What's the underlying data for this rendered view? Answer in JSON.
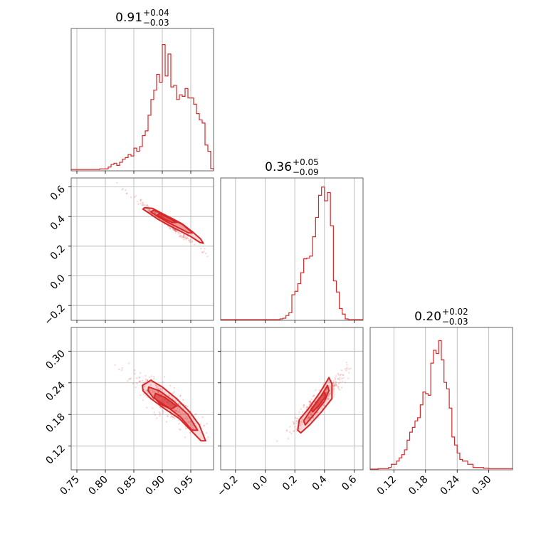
{
  "chart_data": {
    "type": "corner",
    "color": "#d62728",
    "grid": true,
    "parameters": [
      {
        "id": "p0",
        "title": {
          "median": "0.91",
          "plus": "+0.04",
          "minus": "−0.03"
        },
        "range": [
          0.74,
          0.99
        ],
        "ticks": [
          0.75,
          0.8,
          0.85,
          0.9,
          0.95
        ],
        "tick_labels": [
          "0.75",
          "0.80",
          "0.85",
          "0.90",
          "0.95"
        ],
        "hist": {
          "edges": [
            0.74,
            0.745,
            0.75,
            0.755,
            0.76,
            0.765,
            0.77,
            0.775,
            0.78,
            0.785,
            0.79,
            0.795,
            0.8,
            0.805,
            0.81,
            0.815,
            0.82,
            0.825,
            0.83,
            0.835,
            0.84,
            0.845,
            0.85,
            0.855,
            0.86,
            0.865,
            0.87,
            0.875,
            0.88,
            0.885,
            0.89,
            0.895,
            0.9,
            0.905,
            0.91,
            0.915,
            0.92,
            0.925,
            0.93,
            0.935,
            0.94,
            0.945,
            0.95,
            0.955,
            0.96,
            0.965,
            0.97,
            0.975,
            0.98,
            0.985,
            0.99
          ],
          "counts": [
            0.2,
            0.2,
            0.2,
            0.2,
            0.2,
            0.2,
            0.2,
            0.2,
            0.2,
            0.2,
            0.4,
            0.4,
            0.4,
            1.0,
            1.8,
            2.2,
            1.5,
            2.5,
            3.5,
            4.0,
            5.0,
            4.5,
            7.0,
            6.0,
            7.5,
            11.0,
            12.5,
            17.5,
            22.5,
            25.5,
            30.5,
            28.0,
            40.0,
            30.0,
            37.0,
            26.5,
            27.0,
            22.5,
            24.0,
            23.5,
            26.0,
            23.0,
            23.0,
            21.0,
            18.0,
            16.0,
            15.0,
            8.0,
            6.0,
            0.5
          ],
          "ymax": 44.0
        }
      },
      {
        "id": "p1",
        "title": {
          "median": "0.36",
          "plus": "+0.05",
          "minus": "−0.09"
        },
        "range": [
          -0.3,
          0.66
        ],
        "ticks": [
          -0.2,
          0.0,
          0.2,
          0.4,
          0.6
        ],
        "tick_labels": [
          "−0.2",
          "0.0",
          "0.2",
          "0.4",
          "0.6"
        ],
        "hist": {
          "edges": [
            0.1,
            0.12,
            0.14,
            0.16,
            0.18,
            0.2,
            0.22,
            0.24,
            0.26,
            0.28,
            0.3,
            0.32,
            0.34,
            0.36,
            0.38,
            0.4,
            0.42,
            0.44,
            0.46,
            0.48,
            0.5,
            0.52,
            0.54,
            0.56
          ],
          "counts": [
            0.5,
            1.0,
            3.0,
            5.0,
            18.0,
            20.5,
            26.0,
            34.0,
            44.0,
            44.5,
            46.0,
            60.0,
            74.0,
            90.0,
            96.0,
            86.0,
            92.0,
            68.0,
            28.0,
            20.0,
            8.0,
            4.0,
            0.5
          ],
          "ymax": 100.0
        }
      },
      {
        "id": "p2",
        "title": {
          "median": "0.20",
          "plus": "+0.02",
          "minus": "−0.03"
        },
        "range": [
          0.075,
          0.345
        ],
        "ticks": [
          0.12,
          0.18,
          0.24,
          0.3
        ],
        "tick_labels": [
          "0.12",
          "0.18",
          "0.24",
          "0.30"
        ],
        "hist": {
          "edges": [
            0.075,
            0.08,
            0.085,
            0.09,
            0.095,
            0.1,
            0.105,
            0.11,
            0.115,
            0.12,
            0.125,
            0.13,
            0.135,
            0.14,
            0.145,
            0.15,
            0.155,
            0.16,
            0.165,
            0.17,
            0.175,
            0.18,
            0.185,
            0.19,
            0.195,
            0.2,
            0.205,
            0.21,
            0.215,
            0.22,
            0.225,
            0.23,
            0.235,
            0.24,
            0.245,
            0.25,
            0.255,
            0.26,
            0.265,
            0.27,
            0.275,
            0.28,
            0.285,
            0.29,
            0.295,
            0.3,
            0.305,
            0.31,
            0.315,
            0.32,
            0.325,
            0.33,
            0.335,
            0.34,
            0.345
          ],
          "counts": [
            0,
            0,
            0,
            0.3,
            0.3,
            0.3,
            0.3,
            1,
            3,
            3,
            5,
            7,
            9,
            12,
            18,
            23,
            26,
            30,
            32,
            40,
            48,
            47,
            46,
            66,
            74,
            72,
            80,
            68,
            54,
            50,
            38,
            20,
            15,
            10,
            6,
            5,
            5,
            3,
            3,
            1,
            1,
            1,
            1,
            0.5,
            0.5,
            0.3,
            0.3,
            0.3,
            0.3,
            0.3,
            0.3,
            0.3,
            0.3,
            0.3
          ],
          "ymax": 86.0
        }
      }
    ],
    "pairs": [
      {
        "x": "p0",
        "y": "p1",
        "samples": {
          "center": [
            0.905,
            0.365
          ],
          "sx": 0.03,
          "sy": 0.09,
          "rho": -0.99,
          "n": 200,
          "seed": 11
        },
        "contours": [
          [
            [
              0.869,
              0.46
            ],
            [
              0.883,
              0.455
            ],
            [
              0.9,
              0.42
            ],
            [
              0.918,
              0.385
            ],
            [
              0.935,
              0.35
            ],
            [
              0.952,
              0.3
            ],
            [
              0.967,
              0.25
            ],
            [
              0.972,
              0.22
            ],
            [
              0.966,
              0.225
            ],
            [
              0.95,
              0.265
            ],
            [
              0.93,
              0.305
            ],
            [
              0.912,
              0.34
            ],
            [
              0.893,
              0.38
            ],
            [
              0.876,
              0.425
            ],
            [
              0.866,
              0.45
            ]
          ],
          [
            [
              0.885,
              0.445
            ],
            [
              0.9,
              0.415
            ],
            [
              0.918,
              0.38
            ],
            [
              0.936,
              0.345
            ],
            [
              0.953,
              0.29
            ],
            [
              0.946,
              0.29
            ],
            [
              0.928,
              0.325
            ],
            [
              0.91,
              0.36
            ],
            [
              0.892,
              0.4
            ],
            [
              0.88,
              0.43
            ]
          ],
          [
            [
              0.895,
              0.42
            ],
            [
              0.912,
              0.39
            ],
            [
              0.925,
              0.36
            ],
            [
              0.917,
              0.36
            ],
            [
              0.903,
              0.385
            ],
            [
              0.891,
              0.41
            ]
          ]
        ]
      },
      {
        "x": "p0",
        "y": "p2",
        "samples": {
          "center": [
            0.905,
            0.205
          ],
          "sx": 0.03,
          "sy": 0.028,
          "rho": -0.85,
          "n": 300,
          "seed": 23
        },
        "contours": [
          [
            [
              0.865,
              0.235
            ],
            [
              0.88,
              0.245
            ],
            [
              0.9,
              0.232
            ],
            [
              0.925,
              0.21
            ],
            [
              0.948,
              0.185
            ],
            [
              0.965,
              0.16
            ],
            [
              0.976,
              0.13
            ],
            [
              0.968,
              0.13
            ],
            [
              0.95,
              0.15
            ],
            [
              0.93,
              0.172
            ],
            [
              0.905,
              0.19
            ],
            [
              0.88,
              0.21
            ],
            [
              0.866,
              0.225
            ]
          ],
          [
            [
              0.876,
              0.232
            ],
            [
              0.895,
              0.225
            ],
            [
              0.92,
              0.205
            ],
            [
              0.945,
              0.18
            ],
            [
              0.962,
              0.15
            ],
            [
              0.952,
              0.15
            ],
            [
              0.932,
              0.175
            ],
            [
              0.908,
              0.195
            ],
            [
              0.884,
              0.212
            ],
            [
              0.875,
              0.225
            ]
          ],
          [
            [
              0.888,
              0.22
            ],
            [
              0.905,
              0.212
            ],
            [
              0.925,
              0.196
            ],
            [
              0.915,
              0.19
            ],
            [
              0.896,
              0.2
            ],
            [
              0.886,
              0.212
            ]
          ]
        ]
      },
      {
        "x": "p1",
        "y": "p2",
        "samples": {
          "center": [
            0.36,
            0.205
          ],
          "sx": 0.09,
          "sy": 0.028,
          "rho": 0.92,
          "n": 300,
          "seed": 37
        },
        "contours": [
          [
            [
              0.43,
              0.25
            ],
            [
              0.45,
              0.238
            ],
            [
              0.45,
              0.21
            ],
            [
              0.38,
              0.185
            ],
            [
              0.3,
              0.16
            ],
            [
              0.24,
              0.145
            ],
            [
              0.22,
              0.15
            ],
            [
              0.23,
              0.17
            ],
            [
              0.29,
              0.19
            ],
            [
              0.37,
              0.222
            ],
            [
              0.42,
              0.245
            ]
          ],
          [
            [
              0.42,
              0.235
            ],
            [
              0.43,
              0.225
            ],
            [
              0.4,
              0.205
            ],
            [
              0.33,
              0.18
            ],
            [
              0.27,
              0.16
            ],
            [
              0.26,
              0.168
            ],
            [
              0.3,
              0.185
            ],
            [
              0.37,
              0.212
            ],
            [
              0.41,
              0.23
            ]
          ],
          [
            [
              0.4,
              0.222
            ],
            [
              0.41,
              0.215
            ],
            [
              0.36,
              0.196
            ],
            [
              0.32,
              0.185
            ],
            [
              0.31,
              0.19
            ],
            [
              0.35,
              0.205
            ],
            [
              0.39,
              0.22
            ]
          ]
        ]
      }
    ]
  }
}
